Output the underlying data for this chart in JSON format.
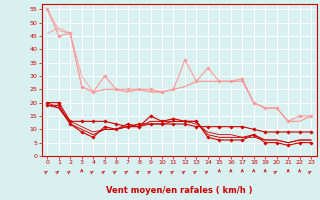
{
  "title": "",
  "xlabel": "Vent moyen/en rafales ( km/h )",
  "bg_color": "#d8f0f0",
  "grid_color": "#ffffff",
  "x": [
    0,
    1,
    2,
    3,
    4,
    5,
    6,
    7,
    8,
    9,
    10,
    11,
    12,
    13,
    14,
    15,
    16,
    17,
    18,
    19,
    20,
    21,
    22,
    23
  ],
  "ylim": [
    0,
    57
  ],
  "yticks": [
    0,
    5,
    10,
    15,
    20,
    25,
    30,
    35,
    40,
    45,
    50,
    55
  ],
  "series": [
    {
      "color": "#ff9999",
      "linewidth": 0.8,
      "marker": "D",
      "markersize": 1.8,
      "values": [
        55,
        45,
        46,
        26,
        24,
        30,
        25,
        25,
        25,
        25,
        24,
        25,
        36,
        28,
        33,
        28,
        28,
        29,
        20,
        18,
        18,
        13,
        15,
        15
      ]
    },
    {
      "color": "#ff9999",
      "linewidth": 0.7,
      "marker": null,
      "markersize": 0,
      "values": [
        55,
        47,
        46,
        26,
        24,
        25,
        25,
        24,
        25,
        24,
        24,
        25,
        26,
        28,
        28,
        28,
        28,
        28,
        20,
        18,
        18,
        13,
        13,
        15
      ]
    },
    {
      "color": "#ff9999",
      "linewidth": 0.6,
      "marker": null,
      "markersize": 0,
      "values": [
        46,
        48,
        46,
        30,
        24,
        25,
        25,
        24,
        25,
        24,
        24,
        25,
        26,
        28,
        28,
        28,
        28,
        28,
        20,
        18,
        18,
        13,
        13,
        15
      ]
    },
    {
      "color": "#cc0000",
      "linewidth": 0.8,
      "marker": "D",
      "markersize": 1.8,
      "values": [
        19,
        19,
        12,
        9,
        7,
        11,
        10,
        12,
        11,
        15,
        13,
        14,
        13,
        13,
        7,
        6,
        6,
        6,
        8,
        5,
        5,
        4,
        5,
        5
      ]
    },
    {
      "color": "#cc0000",
      "linewidth": 0.7,
      "marker": null,
      "markersize": 0,
      "values": [
        19,
        18,
        12,
        10,
        8,
        10,
        10,
        11,
        11,
        13,
        13,
        13,
        13,
        13,
        8,
        7,
        7,
        7,
        8,
        6,
        6,
        5,
        6,
        6
      ]
    },
    {
      "color": "#cc0000",
      "linewidth": 0.6,
      "marker": null,
      "markersize": 0,
      "values": [
        20,
        18,
        13,
        11,
        9,
        10,
        10,
        11,
        11,
        12,
        12,
        13,
        13,
        12,
        9,
        8,
        8,
        7,
        7,
        6,
        6,
        5,
        6,
        6
      ]
    },
    {
      "color": "#cc0000",
      "linewidth": 0.8,
      "marker": "D",
      "markersize": 1.8,
      "values": [
        20,
        20,
        13,
        13,
        13,
        13,
        12,
        11,
        12,
        12,
        12,
        12,
        12,
        11,
        11,
        11,
        11,
        11,
        10,
        9,
        9,
        9,
        9,
        9
      ]
    }
  ],
  "arrow_row": [
    45,
    45,
    45,
    0,
    45,
    45,
    45,
    45,
    45,
    45,
    45,
    45,
    45,
    45,
    45,
    0,
    0,
    0,
    0,
    0,
    45,
    0,
    0,
    45
  ]
}
